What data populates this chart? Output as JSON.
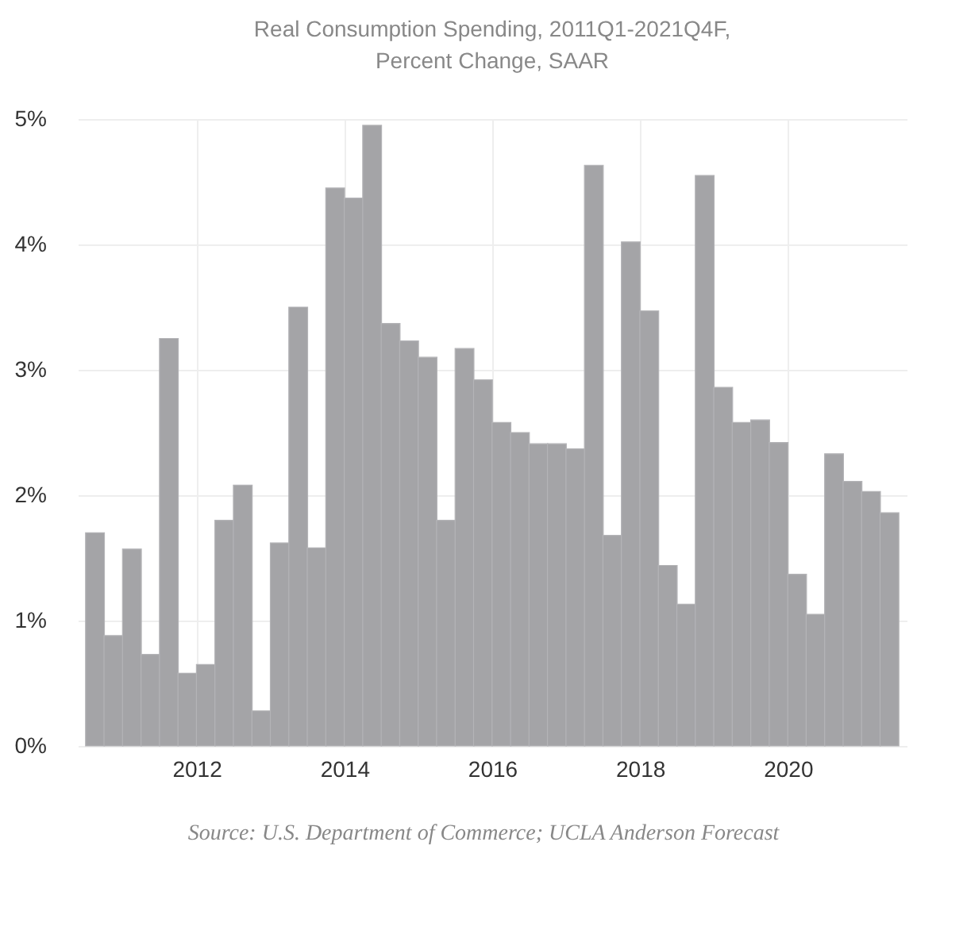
{
  "chart_data": {
    "type": "bar",
    "title": "Real Consumption Spending, 2011Q1-2021Q4F,\nPercent Change, SAAR",
    "x": [
      2011.125,
      2011.375,
      2011.625,
      2011.875,
      2012.125,
      2012.375,
      2012.625,
      2012.875,
      2013.125,
      2013.375,
      2013.625,
      2013.875,
      2014.125,
      2014.375,
      2014.625,
      2014.875,
      2015.125,
      2015.375,
      2015.625,
      2015.875,
      2016.125,
      2016.375,
      2016.625,
      2016.875,
      2017.125,
      2017.375,
      2017.625,
      2017.875,
      2018.125,
      2018.375,
      2018.625,
      2018.875,
      2019.125,
      2019.375,
      2019.625,
      2019.875,
      2020.125,
      2020.375,
      2020.625,
      2020.875,
      2021.125,
      2021.375,
      2021.625,
      2021.875
    ],
    "values": [
      1.7,
      0.88,
      1.57,
      0.73,
      3.25,
      0.58,
      0.65,
      1.8,
      2.08,
      0.28,
      1.62,
      3.5,
      1.58,
      4.45,
      4.37,
      4.95,
      3.37,
      3.23,
      3.1,
      1.8,
      3.17,
      2.92,
      2.58,
      2.5,
      2.41,
      2.41,
      2.37,
      4.63,
      1.68,
      4.02,
      3.47,
      1.44,
      1.13,
      4.55,
      2.86,
      2.58,
      2.6,
      2.42,
      1.37,
      1.05,
      2.33,
      2.11,
      2.03,
      1.86
    ],
    "color": "#a4a4a7",
    "xlim": [
      2011,
      2022
    ],
    "xticks": [
      {
        "value": 2012.5,
        "label": "2012"
      },
      {
        "value": 2014.5,
        "label": "2014"
      },
      {
        "value": 2016.5,
        "label": "2016"
      },
      {
        "value": 2018.5,
        "label": "2018"
      },
      {
        "value": 2020.5,
        "label": "2020"
      }
    ],
    "ylim": [
      0,
      5
    ],
    "yticks": [
      {
        "value": 0,
        "label": "0%"
      },
      {
        "value": 1,
        "label": "1%"
      },
      {
        "value": 2,
        "label": "2%"
      },
      {
        "value": 3,
        "label": "3%"
      },
      {
        "value": 4,
        "label": "4%"
      },
      {
        "value": 5,
        "label": "5%"
      }
    ],
    "grid": true,
    "annotations": [
      "Source: U.S. Department of Commerce; UCLA Anderson Forecast"
    ]
  }
}
